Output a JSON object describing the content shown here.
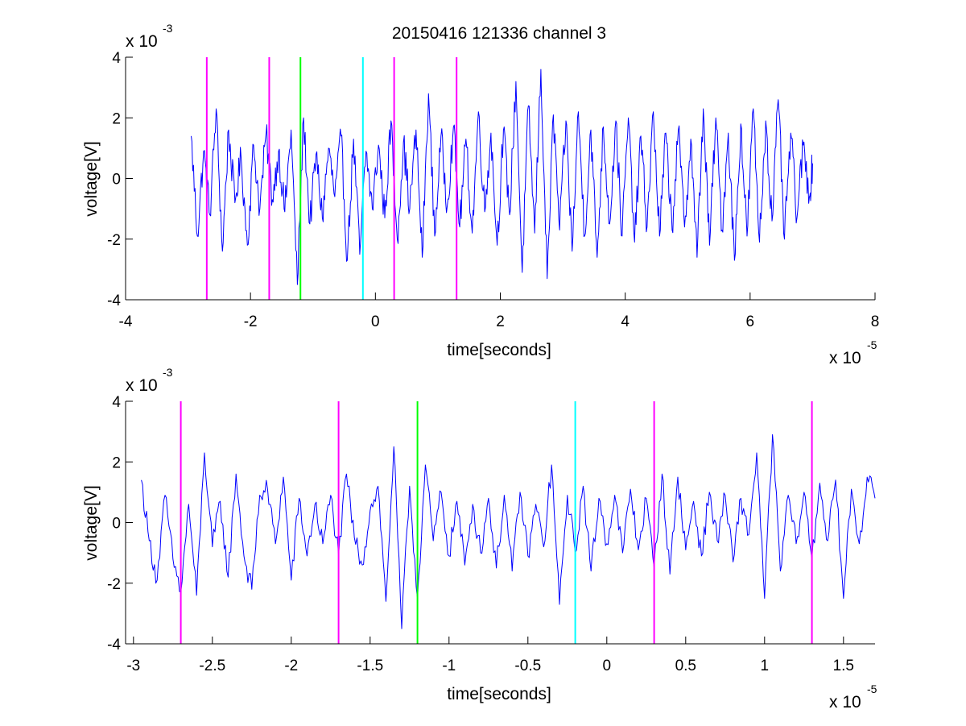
{
  "figure_title": "20150416 121336 channel 3",
  "colors": {
    "signal": "#0000ff",
    "magenta": "#ff00ff",
    "green": "#00ff00",
    "cyan": "#00ffff",
    "axes": "#000000",
    "background": "#ffffff"
  },
  "chart_data": [
    {
      "type": "line",
      "title": "20150416 121336 channel 3",
      "xlabel": "time[seconds]",
      "ylabel": "voltage[V]",
      "x_scale_label": {
        "base": "x 10",
        "exponent": "-5"
      },
      "y_scale_label": {
        "base": "x 10",
        "exponent": "-3"
      },
      "xlim": [
        -4,
        8
      ],
      "ylim": [
        -4,
        4
      ],
      "xticks": [
        -4,
        -2,
        0,
        2,
        4,
        6,
        8
      ],
      "yticks": [
        -4,
        -2,
        0,
        2,
        4
      ],
      "xtick_labels": [
        "-4",
        "-2",
        "0",
        "2",
        "4",
        "6",
        "8"
      ],
      "ytick_labels": [
        "-4",
        "-2",
        "0",
        "2",
        "4"
      ],
      "grid": false,
      "signal_range": [
        -2.95,
        7.0
      ],
      "markers": [
        {
          "x": -2.7,
          "color": "magenta"
        },
        {
          "x": -1.7,
          "color": "magenta"
        },
        {
          "x": -1.2,
          "color": "green"
        },
        {
          "x": -0.2,
          "color": "cyan"
        },
        {
          "x": 0.3,
          "color": "magenta"
        },
        {
          "x": 1.3,
          "color": "magenta"
        }
      ],
      "series": [
        {
          "color": "signal",
          "x": [
            -2.95,
            -2.85,
            -2.75,
            -2.65,
            -2.55,
            -2.45,
            -2.35,
            -2.25,
            -2.15,
            -2.05,
            -1.95,
            -1.85,
            -1.75,
            -1.65,
            -1.55,
            -1.45,
            -1.35,
            -1.25,
            -1.15,
            -1.05,
            -0.95,
            -0.85,
            -0.75,
            -0.65,
            -0.55,
            -0.45,
            -0.35,
            -0.25,
            -0.15,
            -0.05,
            0.05,
            0.15,
            0.25,
            0.35,
            0.45,
            0.55,
            0.65,
            0.75,
            0.85,
            0.95,
            1.05,
            1.15,
            1.25,
            1.35,
            1.45,
            1.55,
            1.65,
            1.75,
            1.85,
            1.95,
            2.05,
            2.15,
            2.25,
            2.35,
            2.45,
            2.55,
            2.65,
            2.75,
            2.85,
            2.95,
            3.05,
            3.15,
            3.25,
            3.35,
            3.45,
            3.55,
            3.65,
            3.75,
            3.85,
            3.95,
            4.05,
            4.15,
            4.25,
            4.35,
            4.45,
            4.55,
            4.65,
            4.75,
            4.85,
            4.95,
            5.05,
            5.15,
            5.25,
            5.35,
            5.45,
            5.55,
            5.65,
            5.75,
            5.85,
            5.95,
            6.05,
            6.15,
            6.25,
            6.35,
            6.45,
            6.55,
            6.65,
            6.75,
            6.85,
            6.95,
            7.0
          ],
          "y": [
            1.4,
            -1.9,
            0.9,
            -1.2,
            2.3,
            -2.4,
            1.6,
            -0.8,
            0.7,
            -2.2,
            1.1,
            -1.0,
            1.5,
            -0.7,
            0.9,
            -1.1,
            1.6,
            -3.5,
            2.0,
            -1.5,
            0.8,
            -1.3,
            1.0,
            -0.6,
            1.4,
            -2.7,
            1.3,
            -2.5,
            0.9,
            -1.0,
            1.1,
            -1.3,
            1.9,
            -2.0,
            1.2,
            -1.0,
            1.6,
            -2.6,
            2.8,
            -1.9,
            1.4,
            -0.9,
            1.7,
            -1.6,
            1.3,
            -1.8,
            2.2,
            -1.1,
            1.5,
            -2.2,
            1.6,
            -1.2,
            3.2,
            -3.1,
            2.4,
            -1.8,
            3.6,
            -3.3,
            2.1,
            -1.7,
            1.9,
            -2.4,
            2.2,
            -1.9,
            1.6,
            -2.6,
            1.7,
            -1.5,
            1.9,
            -1.9,
            2.0,
            -2.1,
            1.4,
            -1.6,
            2.2,
            -1.9,
            1.5,
            -1.7,
            1.6,
            -1.6,
            1.3,
            -2.6,
            2.3,
            -2.2,
            2.0,
            -1.7,
            1.5,
            -2.7,
            1.8,
            -1.9,
            2.3,
            -2.1,
            1.9,
            -1.4,
            2.6,
            -2.0,
            1.5,
            -1.3,
            1.1,
            -0.6,
            0.5
          ]
        }
      ]
    },
    {
      "type": "line",
      "xlabel": "time[seconds]",
      "ylabel": "voltage[V]",
      "x_scale_label": {
        "base": "x 10",
        "exponent": "-5"
      },
      "y_scale_label": {
        "base": "x 10",
        "exponent": "-3"
      },
      "xlim": [
        -3.05,
        1.7
      ],
      "ylim": [
        -4,
        4
      ],
      "xticks": [
        -3,
        -2.5,
        -2,
        -1.5,
        -1,
        -0.5,
        0,
        0.5,
        1,
        1.5
      ],
      "yticks": [
        -4,
        -2,
        0,
        2,
        4
      ],
      "xtick_labels": [
        "-3",
        "-2.5",
        "-2",
        "-1.5",
        "-1",
        "-0.5",
        "0",
        "0.5",
        "1",
        "1.5"
      ],
      "ytick_labels": [
        "-4",
        "-2",
        "0",
        "2",
        "4"
      ],
      "grid": false,
      "signal_range": [
        -2.95,
        1.7
      ],
      "markers": [
        {
          "x": -2.7,
          "color": "magenta"
        },
        {
          "x": -1.7,
          "color": "magenta"
        },
        {
          "x": -1.2,
          "color": "green"
        },
        {
          "x": -0.2,
          "color": "cyan"
        },
        {
          "x": 0.3,
          "color": "magenta"
        },
        {
          "x": 1.3,
          "color": "magenta"
        }
      ],
      "series": [
        {
          "color": "signal",
          "x": [
            -2.95,
            -2.9,
            -2.85,
            -2.8,
            -2.75,
            -2.7,
            -2.65,
            -2.6,
            -2.55,
            -2.5,
            -2.45,
            -2.4,
            -2.35,
            -2.3,
            -2.25,
            -2.2,
            -2.15,
            -2.1,
            -2.05,
            -2.0,
            -1.95,
            -1.9,
            -1.85,
            -1.8,
            -1.75,
            -1.7,
            -1.65,
            -1.6,
            -1.55,
            -1.5,
            -1.45,
            -1.4,
            -1.35,
            -1.3,
            -1.25,
            -1.2,
            -1.15,
            -1.1,
            -1.05,
            -1.0,
            -0.95,
            -0.9,
            -0.85,
            -0.8,
            -0.75,
            -0.7,
            -0.65,
            -0.6,
            -0.55,
            -0.5,
            -0.45,
            -0.4,
            -0.35,
            -0.3,
            -0.25,
            -0.2,
            -0.15,
            -0.1,
            -0.05,
            0.0,
            0.05,
            0.1,
            0.15,
            0.2,
            0.25,
            0.3,
            0.35,
            0.4,
            0.45,
            0.5,
            0.55,
            0.6,
            0.65,
            0.7,
            0.75,
            0.8,
            0.85,
            0.9,
            0.95,
            1.0,
            1.05,
            1.1,
            1.15,
            1.2,
            1.25,
            1.3,
            1.35,
            1.4,
            1.45,
            1.5,
            1.55,
            1.6,
            1.65,
            1.7
          ],
          "y": [
            1.4,
            -0.6,
            -1.9,
            0.9,
            -1.2,
            -2.3,
            0.6,
            -2.4,
            2.3,
            -0.8,
            0.7,
            -1.8,
            1.6,
            -1.1,
            -2.2,
            0.9,
            1.1,
            -0.7,
            1.5,
            -1.9,
            0.8,
            -1.1,
            0.6,
            -0.7,
            0.9,
            -1.1,
            1.6,
            -0.5,
            -1.4,
            0.4,
            1.2,
            -2.6,
            2.5,
            -3.5,
            1.2,
            -2.5,
            1.9,
            -0.6,
            1.0,
            -1.1,
            0.7,
            -1.4,
            0.6,
            -1.0,
            0.8,
            -1.5,
            0.9,
            -1.6,
            1.0,
            -1.1,
            0.6,
            -0.8,
            1.9,
            -2.7,
            0.9,
            -1.0,
            1.2,
            -1.6,
            0.8,
            -0.7,
            0.9,
            -1.0,
            1.1,
            -0.9,
            0.8,
            -1.5,
            1.6,
            -1.7,
            1.5,
            -0.9,
            0.7,
            -1.1,
            1.0,
            -0.6,
            0.9,
            -1.3,
            0.8,
            -0.4,
            2.3,
            -2.5,
            2.9,
            -1.6,
            0.9,
            -0.7,
            1.0,
            -1.2,
            1.3,
            -0.6,
            1.4,
            -2.5,
            1.1,
            -0.7,
            1.5,
            0.8
          ]
        }
      ]
    }
  ]
}
